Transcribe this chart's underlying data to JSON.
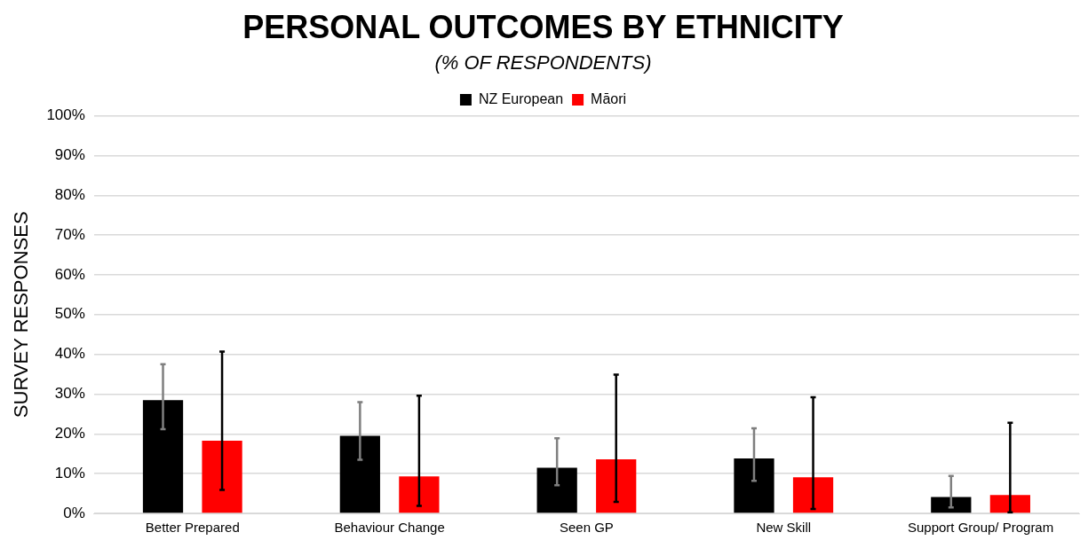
{
  "chart_data": {
    "type": "bar",
    "title": "PERSONAL OUTCOMES BY ETHNICITY",
    "subtitle": "(% OF RESPONDENTS)",
    "ylabel": "SURVEY RESPONSES",
    "categories": [
      "Better Prepared",
      "Behaviour Change",
      "Seen GP",
      "New Skill",
      "Support Group/ Program"
    ],
    "series": [
      {
        "name": "NZ European",
        "color": "#000000",
        "values": [
          28.5,
          19.5,
          11.5,
          13.8,
          4.1
        ],
        "errors": [
          [
            21.2,
            37.5
          ],
          [
            13.5,
            28
          ],
          [
            7.1,
            18.9
          ],
          [
            8.2,
            21.4
          ],
          [
            1.5,
            9.4
          ]
        ]
      },
      {
        "name": "Māori",
        "color": "#ff0000",
        "values": [
          18.3,
          9.3,
          13.6,
          9.1,
          4.6
        ],
        "errors": [
          [
            5.9,
            40.7
          ],
          [
            1.9,
            29.6
          ],
          [
            2.9,
            34.9
          ],
          [
            1.1,
            29.2
          ],
          [
            0.3,
            22.8
          ]
        ]
      }
    ],
    "ylim": [
      0,
      100
    ],
    "yticks": [
      {
        "value": 0,
        "label": "0%"
      },
      {
        "value": 10,
        "label": "10%"
      },
      {
        "value": 20,
        "label": "20%"
      },
      {
        "value": 30,
        "label": "30%"
      },
      {
        "value": 40,
        "label": "40%"
      },
      {
        "value": 50,
        "label": "50%"
      },
      {
        "value": 60,
        "label": "60%"
      },
      {
        "value": 70,
        "label": "70%"
      },
      {
        "value": 80,
        "label": "80%"
      },
      {
        "value": 90,
        "label": "90%"
      },
      {
        "value": 100,
        "label": "100%"
      }
    ],
    "grid": "y",
    "legend": "top"
  }
}
